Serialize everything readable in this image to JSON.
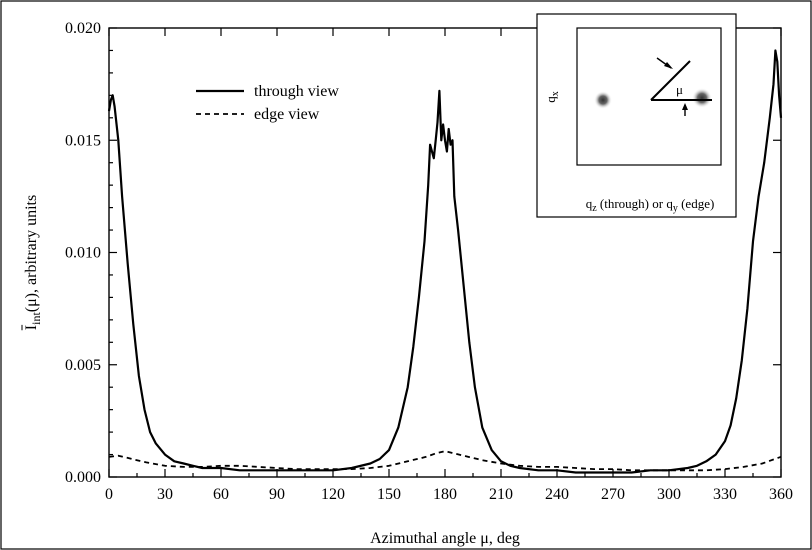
{
  "chart_data": {
    "type": "line",
    "xlabel": "Azimuthal angle μ, deg",
    "ylabel_parts": {
      "main": "I",
      "sub": "int",
      "args": "(μ), arbitrary units"
    },
    "xlim": [
      0,
      360
    ],
    "ylim": [
      0,
      0.02
    ],
    "x_ticks": [
      0,
      30,
      60,
      90,
      120,
      150,
      180,
      210,
      240,
      270,
      300,
      330,
      360
    ],
    "y_ticks": [
      0.0,
      0.005,
      0.01,
      0.015,
      0.02
    ],
    "y_tick_labels": [
      "0.000",
      "0.005",
      "0.010",
      "0.015",
      "0.020"
    ],
    "grid": false,
    "legend_position": "upper-left",
    "series": [
      {
        "name": "through view",
        "style": "solid",
        "color": "#000000",
        "x": [
          0,
          1,
          2,
          3,
          5,
          7,
          10,
          13,
          16,
          19,
          22,
          25,
          30,
          35,
          40,
          45,
          50,
          60,
          70,
          80,
          90,
          100,
          110,
          120,
          130,
          140,
          145,
          150,
          155,
          160,
          163,
          166,
          169,
          171,
          172,
          174,
          175,
          176,
          177,
          178,
          179,
          180,
          181,
          182,
          183,
          184,
          185,
          187,
          190,
          193,
          196,
          200,
          205,
          210,
          215,
          220,
          230,
          240,
          250,
          260,
          270,
          280,
          290,
          300,
          310,
          315,
          320,
          325,
          330,
          333,
          336,
          339,
          342,
          345,
          348,
          351,
          354,
          356,
          357,
          358,
          359,
          360
        ],
        "y": [
          0.0163,
          0.0168,
          0.017,
          0.0165,
          0.015,
          0.0125,
          0.0095,
          0.0068,
          0.0045,
          0.003,
          0.002,
          0.0015,
          0.001,
          0.0007,
          0.0006,
          0.0005,
          0.0004,
          0.0004,
          0.0003,
          0.0003,
          0.0003,
          0.0003,
          0.0003,
          0.0003,
          0.0004,
          0.0006,
          0.0008,
          0.0012,
          0.0022,
          0.004,
          0.0058,
          0.008,
          0.0105,
          0.013,
          0.0148,
          0.0142,
          0.015,
          0.0158,
          0.0172,
          0.015,
          0.0157,
          0.015,
          0.0145,
          0.0155,
          0.0148,
          0.015,
          0.0125,
          0.011,
          0.0085,
          0.006,
          0.004,
          0.0022,
          0.0012,
          0.0007,
          0.0005,
          0.0004,
          0.0003,
          0.0003,
          0.0002,
          0.0002,
          0.0002,
          0.0002,
          0.0003,
          0.0003,
          0.0004,
          0.0005,
          0.0007,
          0.001,
          0.0016,
          0.0023,
          0.0035,
          0.0052,
          0.0075,
          0.0105,
          0.0125,
          0.014,
          0.016,
          0.0175,
          0.019,
          0.0185,
          0.017,
          0.016
        ]
      },
      {
        "name": "edge view",
        "style": "dashed",
        "color": "#000000",
        "x": [
          0,
          5,
          10,
          15,
          20,
          30,
          40,
          50,
          60,
          70,
          80,
          90,
          100,
          110,
          120,
          130,
          140,
          150,
          160,
          170,
          175,
          180,
          185,
          190,
          200,
          210,
          220,
          230,
          240,
          250,
          260,
          270,
          280,
          290,
          300,
          310,
          320,
          330,
          340,
          350,
          360
        ],
        "y": [
          0.0009,
          0.00095,
          0.00085,
          0.00075,
          0.00065,
          0.0005,
          0.00045,
          0.00045,
          0.0005,
          0.0005,
          0.00045,
          0.0004,
          0.00035,
          0.00035,
          0.00035,
          0.00035,
          0.0004,
          0.0005,
          0.0007,
          0.0009,
          0.00105,
          0.00115,
          0.00105,
          0.00095,
          0.00075,
          0.0006,
          0.0005,
          0.00045,
          0.00045,
          0.0004,
          0.00035,
          0.00035,
          0.0003,
          0.0003,
          0.0003,
          0.0003,
          0.0003,
          0.00035,
          0.00045,
          0.0006,
          0.0009
        ]
      }
    ],
    "inset": {
      "y_axis_label": "q",
      "y_axis_sub": "x",
      "x_axis_label_parts": [
        "q",
        "z",
        " (through) or q",
        "y",
        " (edge)"
      ],
      "angle_label": "μ"
    }
  }
}
